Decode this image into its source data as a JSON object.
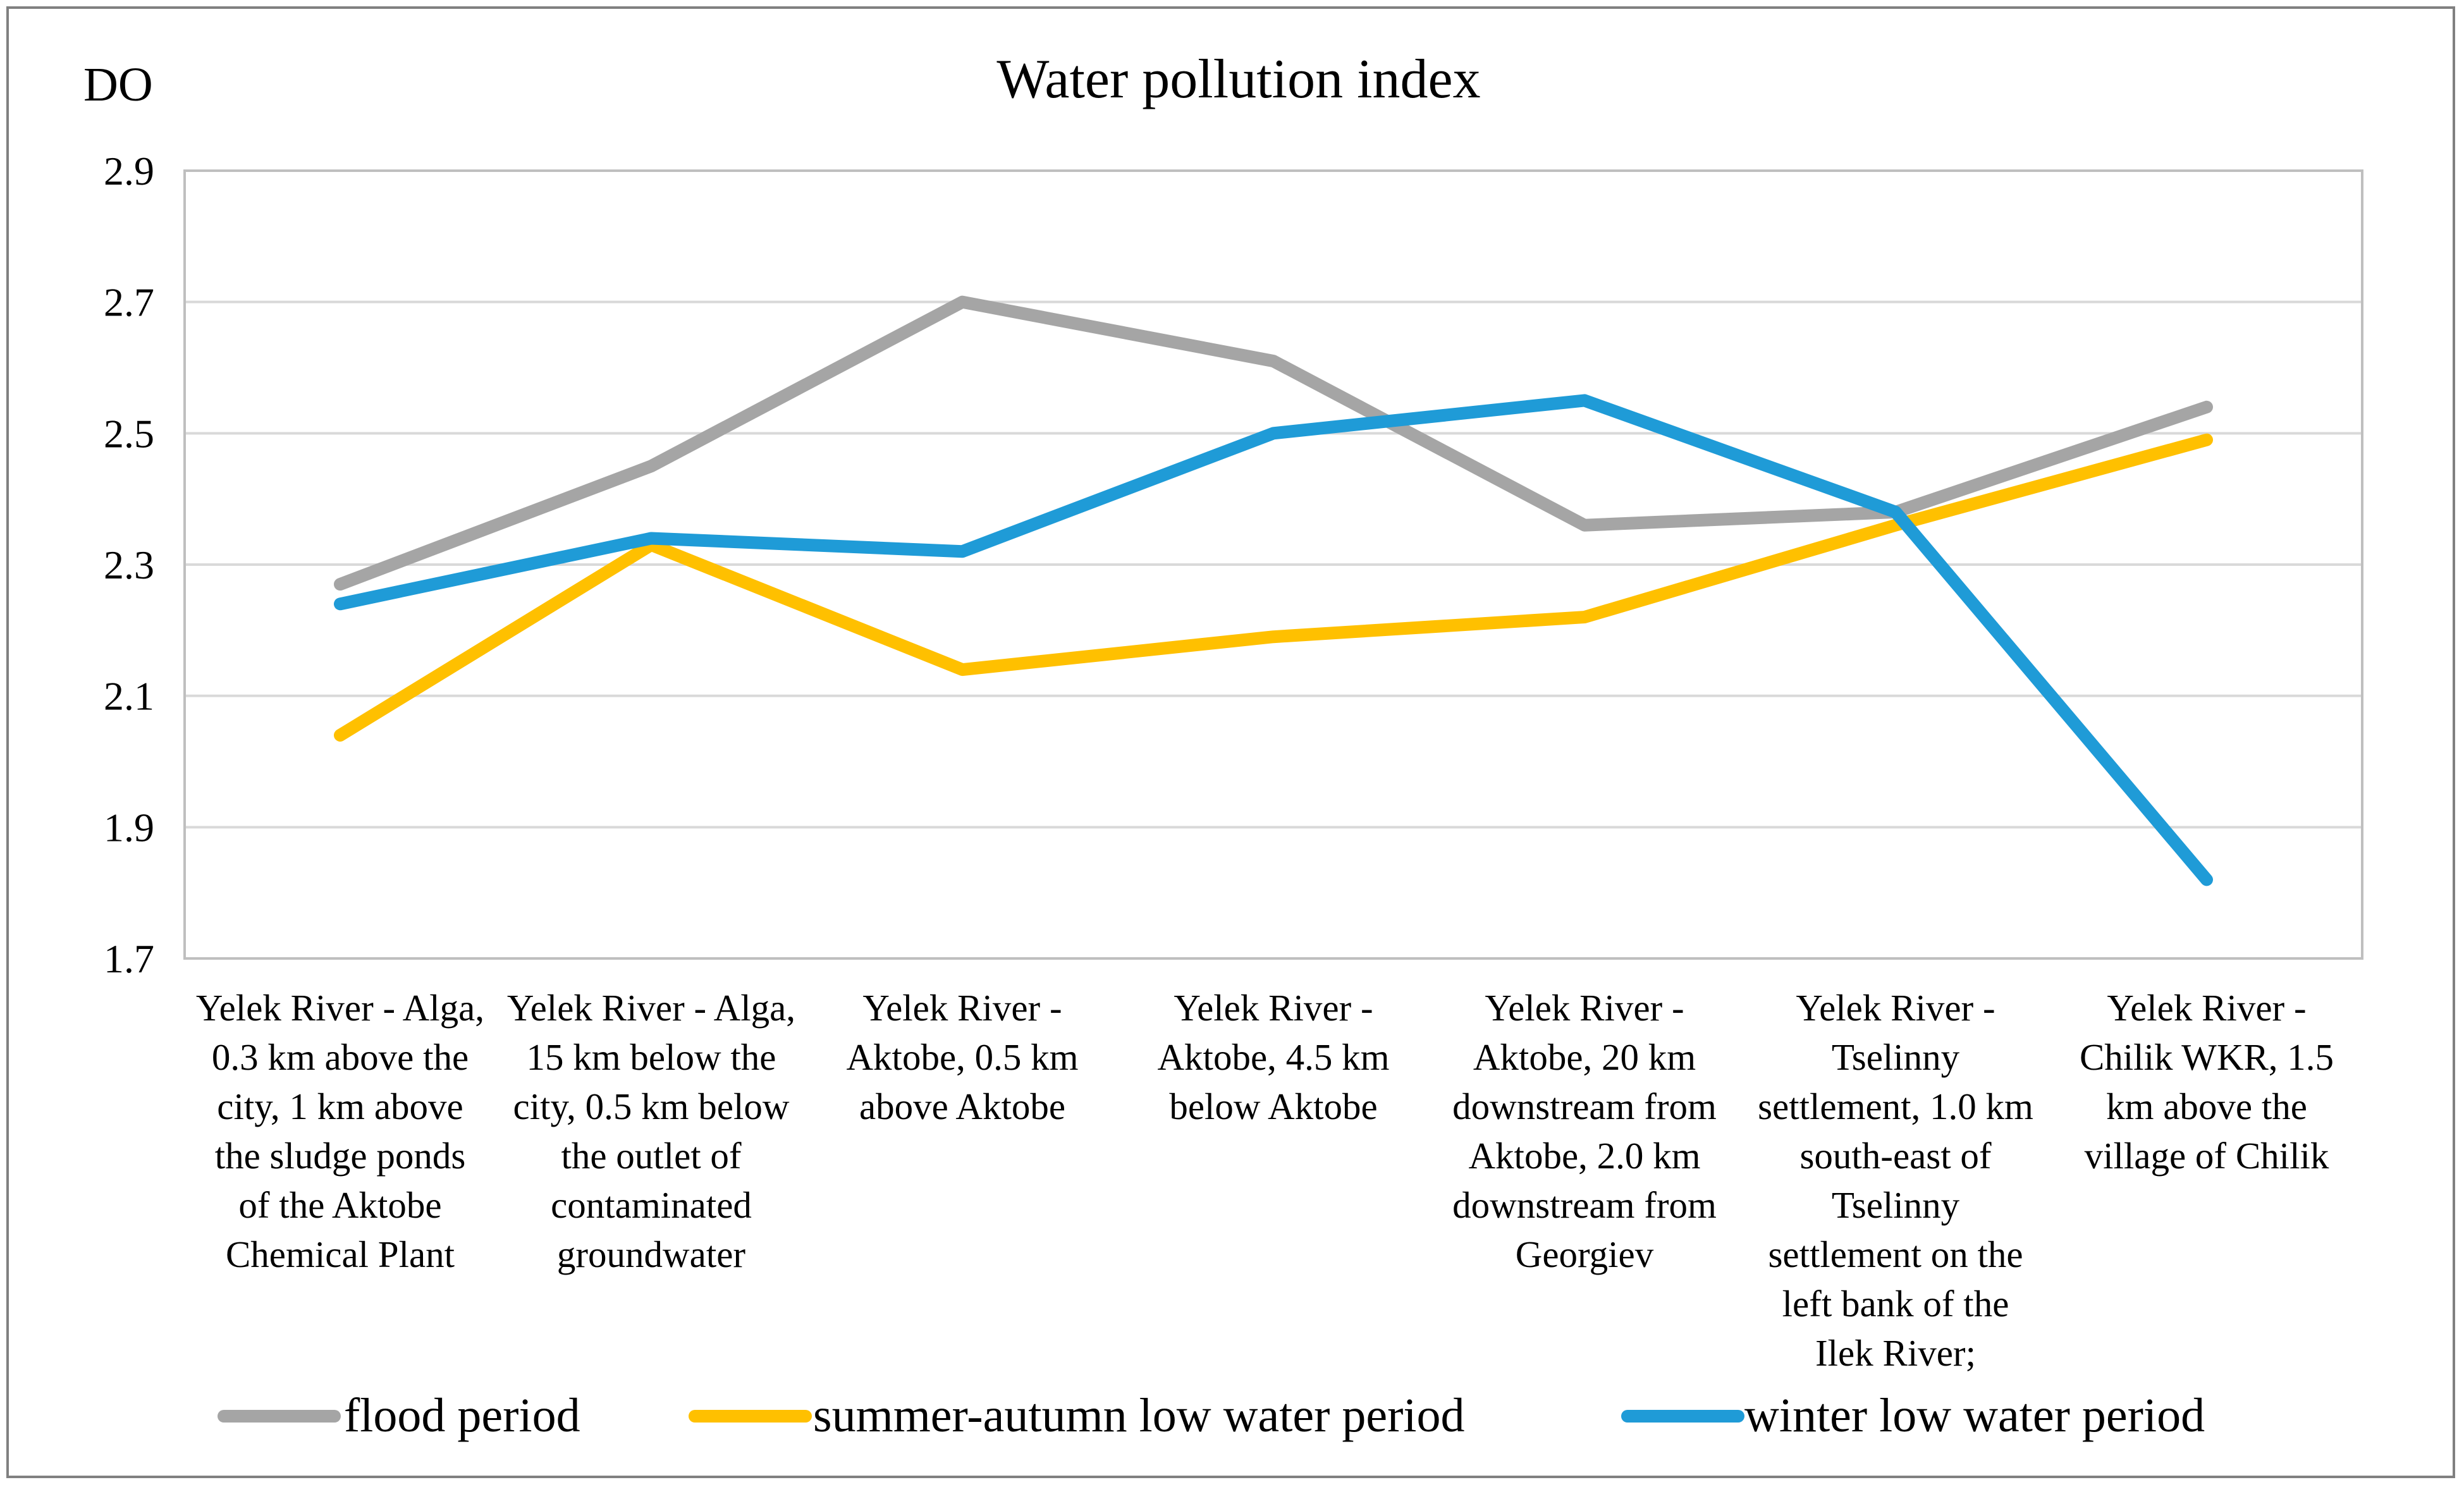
{
  "chart_data": {
    "type": "line",
    "title": "Water pollution index",
    "ylabel": "DO",
    "xlabel": "",
    "ylim": [
      1.7,
      2.9
    ],
    "yticks": [
      1.7,
      1.9,
      2.1,
      2.3,
      2.5,
      2.7,
      2.9
    ],
    "ytick_labels": [
      "1.7",
      "1.9",
      "2.1",
      "2.3",
      "2.5",
      "2.7",
      "2.9"
    ],
    "grid": true,
    "legend_position": "bottom",
    "categories": [
      [
        "Yelek River - Alga,",
        "0.3 km above the",
        "city, 1 km above",
        "the sludge ponds",
        "of the Aktobe",
        "Chemical Plant"
      ],
      [
        "Yelek River - Alga,",
        "15 km below the",
        "city, 0.5 km below",
        "the outlet of",
        "contaminated",
        "groundwater"
      ],
      [
        "Yelek River -",
        "Aktobe, 0.5 km",
        "above Aktobe"
      ],
      [
        "Yelek River -",
        "Aktobe, 4.5 km",
        "below Aktobe"
      ],
      [
        "Yelek River -",
        "Aktobe, 20 km",
        "downstream from",
        "Aktobe, 2.0 km",
        "downstream from",
        "Georgiev"
      ],
      [
        "Yelek River -",
        "Tselinny",
        "settlement, 1.0 km",
        "south-east of",
        "Tselinny",
        "settlement on the",
        "left bank of the",
        "Ilek River;"
      ],
      [
        "Yelek River -",
        "Chilik WKR, 1.5",
        "km above the",
        "village of Chilik"
      ]
    ],
    "series": [
      {
        "name": "flood period",
        "color": "#a5a5a5",
        "values": [
          2.27,
          2.45,
          2.7,
          2.61,
          2.36,
          2.38,
          2.54
        ]
      },
      {
        "name": "summer-autumn low water period",
        "color": "#ffc000",
        "values": [
          2.04,
          2.33,
          2.14,
          2.19,
          2.22,
          2.36,
          2.49
        ]
      },
      {
        "name": "winter low water period",
        "color": "#1f9bd7",
        "values": [
          2.24,
          2.34,
          2.32,
          2.5,
          2.55,
          2.38,
          1.82
        ]
      }
    ],
    "colors": {
      "grid": "#d9d9d9",
      "axis": "#bfbfbf",
      "border": "#808080"
    }
  }
}
